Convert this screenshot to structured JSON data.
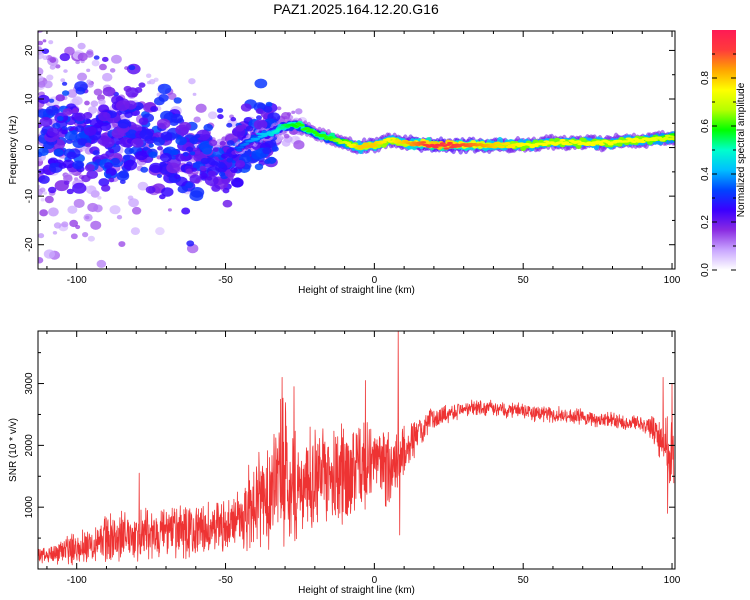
{
  "title": "PAZ1.2025.164.12.20.G16",
  "chart_data": [
    {
      "type": "heatmap",
      "xlabel": "Height of straight line (km)",
      "ylabel": "Frequency (Hz)",
      "xlim": [
        -113,
        101
      ],
      "ylim": [
        -25,
        24
      ],
      "xticks": [
        -100,
        -50,
        0,
        50,
        100
      ],
      "yticks": [
        -20,
        -10,
        0,
        10,
        20
      ],
      "colorbar": {
        "label": "Normalized spectral amplitude",
        "range": [
          0,
          1
        ],
        "ticks": [
          0.0,
          0.2,
          0.4,
          0.6,
          0.8
        ],
        "colors": [
          "#ffffff",
          "#c9a6ff",
          "#8a2be2",
          "#3a00ff",
          "#0044ff",
          "#00bfff",
          "#00ffcc",
          "#00ff00",
          "#b6ff00",
          "#ffff00",
          "#ffa500",
          "#ff3b3b",
          "#ff1a55"
        ]
      },
      "ridge": [
        {
          "x": -110,
          "f": 2.5,
          "a": 0.35
        },
        {
          "x": -100,
          "f": 3.0,
          "a": 0.4
        },
        {
          "x": -90,
          "f": 2.5,
          "a": 0.45
        },
        {
          "x": -80,
          "f": 2.0,
          "a": 0.4
        },
        {
          "x": -70,
          "f": 0.5,
          "a": 0.35
        },
        {
          "x": -60,
          "f": -1.0,
          "a": 0.35
        },
        {
          "x": -50,
          "f": -1.5,
          "a": 0.3
        },
        {
          "x": -45,
          "f": 0.0,
          "a": 0.35
        },
        {
          "x": -40,
          "f": 2.0,
          "a": 0.4
        },
        {
          "x": -35,
          "f": 3.0,
          "a": 0.45
        },
        {
          "x": -30,
          "f": 4.5,
          "a": 0.55
        },
        {
          "x": -25,
          "f": 4.5,
          "a": 0.6
        },
        {
          "x": -20,
          "f": 3.0,
          "a": 0.6
        },
        {
          "x": -15,
          "f": 2.0,
          "a": 0.6
        },
        {
          "x": -10,
          "f": 1.0,
          "a": 0.7
        },
        {
          "x": -5,
          "f": 0.0,
          "a": 0.8
        },
        {
          "x": 0,
          "f": 0.5,
          "a": 0.8
        },
        {
          "x": 5,
          "f": 1.5,
          "a": 0.75
        },
        {
          "x": 10,
          "f": 1.0,
          "a": 0.8
        },
        {
          "x": 20,
          "f": 0.5,
          "a": 0.95
        },
        {
          "x": 30,
          "f": 0.5,
          "a": 0.9
        },
        {
          "x": 40,
          "f": 0.5,
          "a": 0.8
        },
        {
          "x": 50,
          "f": 0.5,
          "a": 0.75
        },
        {
          "x": 60,
          "f": 1.0,
          "a": 0.75
        },
        {
          "x": 70,
          "f": 1.0,
          "a": 0.75
        },
        {
          "x": 80,
          "f": 1.0,
          "a": 0.75
        },
        {
          "x": 90,
          "f": 1.5,
          "a": 0.75
        },
        {
          "x": 100,
          "f": 2.0,
          "a": 0.7
        }
      ]
    },
    {
      "type": "line",
      "xlabel": "Height of straight line (km)",
      "ylabel": "SNR (10 * v/v)",
      "xlim": [
        -113,
        101
      ],
      "ylim": [
        0,
        3850
      ],
      "xticks": [
        -100,
        -50,
        0,
        50,
        100
      ],
      "yticks": [
        1000,
        2000,
        3000
      ],
      "color": "#ee3333",
      "envelope": [
        {
          "x": -112,
          "mean": 200,
          "amp": 150
        },
        {
          "x": -100,
          "mean": 350,
          "amp": 300
        },
        {
          "x": -90,
          "mean": 500,
          "amp": 450
        },
        {
          "x": -80,
          "mean": 550,
          "amp": 500
        },
        {
          "x": -70,
          "mean": 580,
          "amp": 500
        },
        {
          "x": -60,
          "mean": 600,
          "amp": 500
        },
        {
          "x": -50,
          "mean": 700,
          "amp": 500
        },
        {
          "x": -45,
          "mean": 800,
          "amp": 600
        },
        {
          "x": -40,
          "mean": 1100,
          "amp": 900
        },
        {
          "x": -35,
          "mean": 1300,
          "amp": 1100
        },
        {
          "x": -30,
          "mean": 1600,
          "amp": 1400
        },
        {
          "x": -25,
          "mean": 1300,
          "amp": 1000
        },
        {
          "x": -20,
          "mean": 1500,
          "amp": 900
        },
        {
          "x": -15,
          "mean": 1500,
          "amp": 900
        },
        {
          "x": -10,
          "mean": 1500,
          "amp": 1000
        },
        {
          "x": -5,
          "mean": 1600,
          "amp": 900
        },
        {
          "x": 0,
          "mean": 1800,
          "amp": 700
        },
        {
          "x": 5,
          "mean": 1600,
          "amp": 800
        },
        {
          "x": 10,
          "mean": 1900,
          "amp": 500
        },
        {
          "x": 15,
          "mean": 2200,
          "amp": 300
        },
        {
          "x": 20,
          "mean": 2450,
          "amp": 200
        },
        {
          "x": 30,
          "mean": 2600,
          "amp": 150
        },
        {
          "x": 40,
          "mean": 2600,
          "amp": 150
        },
        {
          "x": 50,
          "mean": 2550,
          "amp": 150
        },
        {
          "x": 60,
          "mean": 2500,
          "amp": 150
        },
        {
          "x": 70,
          "mean": 2450,
          "amp": 150
        },
        {
          "x": 80,
          "mean": 2400,
          "amp": 150
        },
        {
          "x": 90,
          "mean": 2350,
          "amp": 150
        },
        {
          "x": 95,
          "mean": 2200,
          "amp": 300
        },
        {
          "x": 100,
          "mean": 1800,
          "amp": 700
        }
      ],
      "spikes": [
        {
          "x": -79,
          "y": 1550
        },
        {
          "x": -31,
          "y": 3100
        },
        {
          "x": -27,
          "y": 2950
        },
        {
          "x": -3,
          "y": 3050
        },
        {
          "x": 8,
          "y": 3850
        },
        {
          "x": 8.5,
          "y": 550
        },
        {
          "x": 97,
          "y": 3100
        },
        {
          "x": 98.5,
          "y": 900
        },
        {
          "x": 100,
          "y": 3000
        }
      ]
    }
  ]
}
